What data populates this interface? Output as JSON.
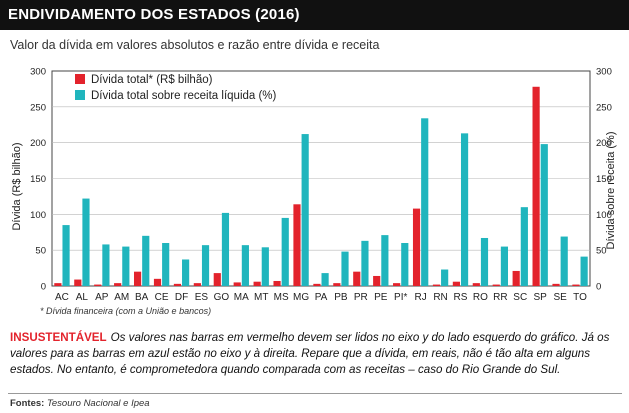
{
  "header": {
    "title": "ENDIVIDAMENTO DOS ESTADOS (2016)"
  },
  "subtitle": "Valor da dívida em valores absolutos e razão entre dívida e receita",
  "chart_data": {
    "type": "bar",
    "categories": [
      "AC",
      "AL",
      "AP",
      "AM",
      "BA",
      "CE",
      "DF",
      "ES",
      "GO",
      "MA",
      "MT",
      "MS",
      "MG",
      "PA",
      "PB",
      "PR",
      "PE",
      "PI*",
      "RJ",
      "RN",
      "RS",
      "RO",
      "RR",
      "SC",
      "SP",
      "SE",
      "TO"
    ],
    "series": [
      {
        "name": "Dívida total* (R$ bilhão)",
        "axis": "left",
        "color": "#e3232c",
        "values": [
          4,
          9,
          2,
          4,
          20,
          10,
          3,
          4,
          18,
          5,
          6,
          7,
          114,
          3,
          4,
          20,
          14,
          4,
          108,
          2,
          6,
          4,
          2,
          21,
          278,
          3,
          2
        ]
      },
      {
        "name": "Dívida total sobre receita líquida (%)",
        "axis": "right",
        "color": "#20b5bd",
        "values": [
          85,
          122,
          58,
          55,
          70,
          60,
          37,
          57,
          102,
          57,
          54,
          95,
          212,
          18,
          48,
          63,
          71,
          60,
          234,
          23,
          213,
          67,
          55,
          110,
          198,
          69,
          41
        ]
      }
    ],
    "ylabel_left": "Dívida (R$ bilhão)",
    "ylabel_right": "Dívida sobre receita (%)",
    "ylim": [
      0,
      300
    ],
    "yticks": [
      0,
      50,
      100,
      150,
      200,
      250,
      300
    ],
    "grid": true,
    "legend": "top-left"
  },
  "footnote": "* Dívida financeira (com a União e bancos)",
  "note": {
    "lead": "INSUSTENTÁVEL",
    "text": "Os valores nas barras em vermelho devem ser lidos no eixo y do lado esquerdo do gráfico. Já os valores para as barras em azul estão no eixo y à direita. Repare que a dívida, em reais, não é tão alta em alguns estados. No entanto, é comprometedora quando comparada com as receitas – caso do Rio Grande do Sul."
  },
  "source": {
    "label": "Fontes:",
    "value": "Tesouro Nacional e Ipea"
  }
}
